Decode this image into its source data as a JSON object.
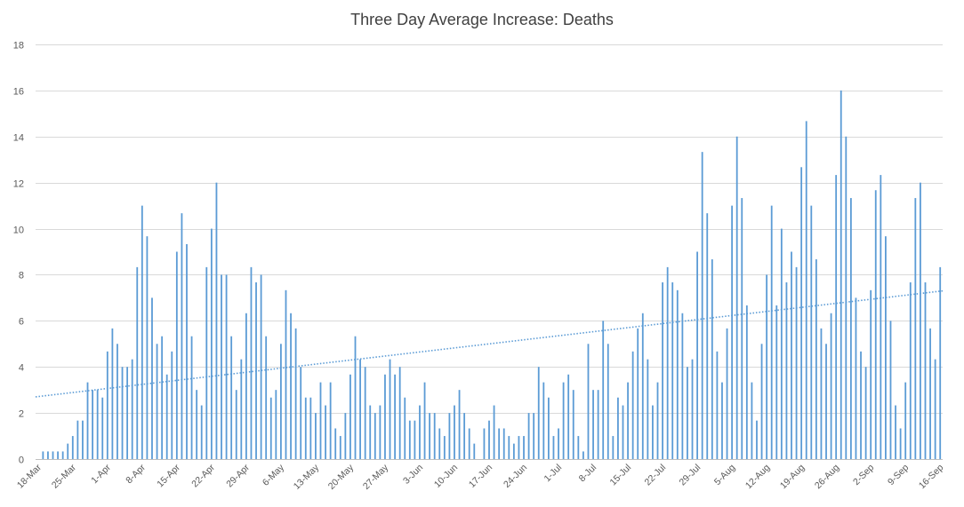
{
  "chart_data": {
    "type": "bar",
    "title": "Three Day Average Increase: Deaths",
    "xlabel": "",
    "ylabel": "",
    "ylim": [
      0,
      18
    ],
    "y_ticks": [
      0,
      2,
      4,
      6,
      8,
      10,
      12,
      14,
      16,
      18
    ],
    "grid": true,
    "legend": "none",
    "bar_color": "#5b9bd5",
    "trend_color": "#5b9bd5",
    "trendline": {
      "type": "linear",
      "start": 2.7,
      "end": 7.3
    },
    "x_tick_labels": [
      "18-Mar",
      "25-Mar",
      "1-Apr",
      "8-Apr",
      "15-Apr",
      "22-Apr",
      "29-Apr",
      "6-May",
      "13-May",
      "20-May",
      "27-May",
      "3-Jun",
      "10-Jun",
      "17-Jun",
      "24-Jun",
      "1-Jul",
      "8-Jul",
      "15-Jul",
      "22-Jul",
      "29-Jul",
      "5-Aug",
      "12-Aug",
      "19-Aug",
      "26-Aug",
      "2-Sep",
      "9-Sep",
      "16-Sep"
    ],
    "categories": [
      "18-Mar",
      "19-Mar",
      "20-Mar",
      "21-Mar",
      "22-Mar",
      "23-Mar",
      "24-Mar",
      "25-Mar",
      "26-Mar",
      "27-Mar",
      "28-Mar",
      "29-Mar",
      "30-Mar",
      "31-Mar",
      "1-Apr",
      "2-Apr",
      "3-Apr",
      "4-Apr",
      "5-Apr",
      "6-Apr",
      "7-Apr",
      "8-Apr",
      "9-Apr",
      "10-Apr",
      "11-Apr",
      "12-Apr",
      "13-Apr",
      "14-Apr",
      "15-Apr",
      "16-Apr",
      "17-Apr",
      "18-Apr",
      "19-Apr",
      "20-Apr",
      "21-Apr",
      "22-Apr",
      "23-Apr",
      "24-Apr",
      "25-Apr",
      "26-Apr",
      "27-Apr",
      "28-Apr",
      "29-Apr",
      "30-Apr",
      "1-May",
      "2-May",
      "3-May",
      "4-May",
      "5-May",
      "6-May",
      "7-May",
      "8-May",
      "9-May",
      "10-May",
      "11-May",
      "12-May",
      "13-May",
      "14-May",
      "15-May",
      "16-May",
      "17-May",
      "18-May",
      "19-May",
      "20-May",
      "21-May",
      "22-May",
      "23-May",
      "24-May",
      "25-May",
      "26-May",
      "27-May",
      "28-May",
      "29-May",
      "30-May",
      "31-May",
      "1-Jun",
      "2-Jun",
      "3-Jun",
      "4-Jun",
      "5-Jun",
      "6-Jun",
      "7-Jun",
      "8-Jun",
      "9-Jun",
      "10-Jun",
      "11-Jun",
      "12-Jun",
      "13-Jun",
      "14-Jun",
      "15-Jun",
      "16-Jun",
      "17-Jun",
      "18-Jun",
      "19-Jun",
      "20-Jun",
      "21-Jun",
      "22-Jun",
      "23-Jun",
      "24-Jun",
      "25-Jun",
      "26-Jun",
      "27-Jun",
      "28-Jun",
      "29-Jun",
      "30-Jun",
      "1-Jul",
      "2-Jul",
      "3-Jul",
      "4-Jul",
      "5-Jul",
      "6-Jul",
      "7-Jul",
      "8-Jul",
      "9-Jul",
      "10-Jul",
      "11-Jul",
      "12-Jul",
      "13-Jul",
      "14-Jul",
      "15-Jul",
      "16-Jul",
      "17-Jul",
      "18-Jul",
      "19-Jul",
      "20-Jul",
      "21-Jul",
      "22-Jul",
      "23-Jul",
      "24-Jul",
      "25-Jul",
      "26-Jul",
      "27-Jul",
      "28-Jul",
      "29-Jul",
      "30-Jul",
      "31-Jul",
      "1-Aug",
      "2-Aug",
      "3-Aug",
      "4-Aug",
      "5-Aug",
      "6-Aug",
      "7-Aug",
      "8-Aug",
      "9-Aug",
      "10-Aug",
      "11-Aug",
      "12-Aug",
      "13-Aug",
      "14-Aug",
      "15-Aug",
      "16-Aug",
      "17-Aug",
      "18-Aug",
      "19-Aug",
      "20-Aug",
      "21-Aug",
      "22-Aug",
      "23-Aug",
      "24-Aug",
      "25-Aug",
      "26-Aug",
      "27-Aug",
      "28-Aug",
      "29-Aug",
      "30-Aug",
      "31-Aug",
      "1-Sep",
      "2-Sep",
      "3-Sep",
      "4-Sep",
      "5-Sep",
      "6-Sep",
      "7-Sep",
      "8-Sep",
      "9-Sep",
      "10-Sep",
      "11-Sep",
      "12-Sep",
      "13-Sep",
      "14-Sep",
      "15-Sep",
      "16-Sep"
    ],
    "values": [
      0,
      0.33,
      0.33,
      0.33,
      0.33,
      0.33,
      0.67,
      1,
      1.67,
      1.67,
      3.33,
      3,
      3,
      2.67,
      4.67,
      5.67,
      5,
      4,
      4,
      4.33,
      8.33,
      11,
      9.67,
      7,
      5,
      5.33,
      3.67,
      4.67,
      9,
      10.67,
      9.33,
      5.33,
      3,
      2.33,
      8.33,
      10,
      12,
      8,
      8,
      5.33,
      3,
      4.33,
      6.33,
      8.33,
      7.67,
      8,
      5.33,
      2.67,
      3,
      5,
      7.33,
      6.33,
      5.67,
      4,
      2.67,
      2.67,
      2,
      3.33,
      2.33,
      3.33,
      1.33,
      1,
      2,
      3.67,
      5.33,
      4.33,
      4,
      2.33,
      2,
      2.33,
      3.67,
      4.33,
      3.67,
      4,
      2.67,
      1.67,
      1.67,
      2.33,
      3.33,
      2,
      2,
      1.33,
      1,
      2,
      2.33,
      3,
      2,
      1.33,
      0.67,
      0,
      1.33,
      1.67,
      2.33,
      1.33,
      1.33,
      1,
      0.67,
      1,
      1,
      2,
      2,
      4,
      3.33,
      2.67,
      1,
      1.33,
      3.33,
      3.67,
      3,
      1,
      0.33,
      5,
      3,
      3,
      6,
      5,
      1,
      2.67,
      2.33,
      3.33,
      4.67,
      5.67,
      6.33,
      4.33,
      2.33,
      3.33,
      7.67,
      8.33,
      7.67,
      7.33,
      6.33,
      4,
      4.33,
      9,
      13.33,
      10.67,
      8.67,
      4.67,
      3.33,
      5.67,
      11,
      14,
      11.33,
      6.67,
      3.33,
      1.67,
      5,
      8,
      11,
      6.67,
      10,
      7.67,
      9,
      8.33,
      12.67,
      14.67,
      11,
      8.67,
      5.67,
      5,
      6.33,
      12.33,
      16,
      14,
      11.33,
      7,
      4.67,
      4,
      7.33,
      11.67,
      12.33,
      9.67,
      6,
      2.33,
      1.33,
      3.33,
      7.67,
      11.33,
      12,
      7.67,
      5.67,
      4.33,
      8.33
    ]
  }
}
